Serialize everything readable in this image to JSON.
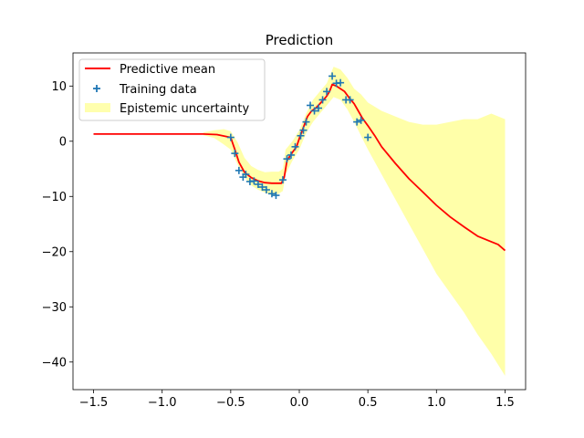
{
  "chart_data": {
    "type": "line",
    "title": "Prediction",
    "xlabel": "",
    "ylabel": "",
    "xlim": [
      -1.65,
      1.65
    ],
    "ylim": [
      -45,
      16
    ],
    "x_ticks": [
      -1.5,
      -1.0,
      -0.5,
      0.0,
      0.5,
      1.0,
      1.5
    ],
    "x_tick_labels": [
      "−1.5",
      "−1.0",
      "−0.5",
      "0.0",
      "0.5",
      "1.0",
      "1.5"
    ],
    "y_ticks": [
      -40,
      -30,
      -20,
      -10,
      0,
      10
    ],
    "y_tick_labels": [
      "−40",
      "−30",
      "−20",
      "−10",
      "0",
      "10"
    ],
    "grid": false,
    "legend_position": "top-left",
    "series": [
      {
        "name": "Predictive mean",
        "kind": "line",
        "color": "#ff0000",
        "x": [
          -1.5,
          -1.2,
          -0.9,
          -0.7,
          -0.6,
          -0.5,
          -0.47,
          -0.44,
          -0.4,
          -0.35,
          -0.3,
          -0.25,
          -0.2,
          -0.15,
          -0.13,
          -0.11,
          -0.09,
          -0.05,
          -0.02,
          0.0,
          0.03,
          0.06,
          0.09,
          0.12,
          0.15,
          0.18,
          0.2,
          0.22,
          0.24,
          0.27,
          0.3,
          0.33,
          0.36,
          0.4,
          0.43,
          0.46,
          0.5,
          0.55,
          0.6,
          0.7,
          0.8,
          0.9,
          1.0,
          1.1,
          1.2,
          1.3,
          1.4,
          1.45,
          1.5
        ],
        "y": [
          1.3,
          1.3,
          1.3,
          1.3,
          1.2,
          0.7,
          -1.5,
          -3.8,
          -5.6,
          -6.6,
          -7.2,
          -7.5,
          -7.6,
          -7.6,
          -7.6,
          -6.5,
          -3.5,
          -2.0,
          -1.0,
          0.5,
          2.5,
          4.5,
          5.5,
          6.0,
          6.8,
          7.6,
          8.2,
          9.0,
          10.3,
          10.0,
          9.5,
          9.0,
          8.0,
          6.8,
          5.5,
          4.2,
          2.8,
          1.0,
          -1.0,
          -4.0,
          -6.8,
          -9.2,
          -11.6,
          -13.7,
          -15.5,
          -17.2,
          -18.2,
          -18.7,
          -19.8
        ]
      },
      {
        "name": "Training data",
        "kind": "scatter",
        "color": "#1f77b4",
        "x": [
          -0.5,
          -0.47,
          -0.44,
          -0.41,
          -0.39,
          -0.36,
          -0.33,
          -0.3,
          -0.27,
          -0.24,
          -0.2,
          -0.17,
          -0.12,
          -0.09,
          -0.06,
          -0.03,
          0.01,
          0.03,
          0.05,
          0.08,
          0.11,
          0.14,
          0.17,
          0.2,
          0.24,
          0.27,
          0.3,
          0.34,
          0.37,
          0.42,
          0.45,
          0.5
        ],
        "y": [
          0.7,
          -2.2,
          -5.3,
          -6.5,
          -6.0,
          -7.3,
          -7.2,
          -7.8,
          -8.3,
          -8.8,
          -9.5,
          -9.8,
          -7.0,
          -3.2,
          -2.5,
          -1.0,
          1.0,
          2.0,
          3.5,
          6.5,
          5.5,
          6.0,
          7.5,
          9.0,
          11.8,
          10.5,
          10.6,
          7.5,
          7.5,
          3.5,
          3.8,
          0.7
        ]
      },
      {
        "name": "Epistemic uncertainty",
        "kind": "band",
        "color": "#ffff9a",
        "x": [
          -0.7,
          -0.62,
          -0.55,
          -0.5,
          -0.45,
          -0.4,
          -0.35,
          -0.3,
          -0.25,
          -0.2,
          -0.15,
          -0.12,
          -0.1,
          -0.05,
          0.0,
          0.05,
          0.1,
          0.15,
          0.2,
          0.25,
          0.3,
          0.35,
          0.4,
          0.45,
          0.5,
          0.6,
          0.7,
          0.8,
          0.9,
          1.0,
          1.1,
          1.2,
          1.3,
          1.4,
          1.5
        ],
        "lower": [
          1.1,
          0.6,
          -0.6,
          -1.5,
          -4.2,
          -6.5,
          -8.0,
          -8.8,
          -9.3,
          -9.8,
          -9.5,
          -9.0,
          -6.0,
          -3.5,
          -1.5,
          1.5,
          3.5,
          5.0,
          6.5,
          8.0,
          7.5,
          5.8,
          3.5,
          1.0,
          -1.5,
          -6.0,
          -10.5,
          -15.0,
          -19.5,
          -24.0,
          -27.5,
          -31.0,
          -35.0,
          -38.5,
          -42.5
        ],
        "upper": [
          1.6,
          2.0,
          2.2,
          1.8,
          -0.2,
          -3.0,
          -4.5,
          -5.2,
          -5.6,
          -5.5,
          -5.5,
          -5.0,
          -1.5,
          0.0,
          2.0,
          5.0,
          7.5,
          9.0,
          10.5,
          13.5,
          13.0,
          11.5,
          9.5,
          8.5,
          7.0,
          5.5,
          4.5,
          3.5,
          3.0,
          3.0,
          3.5,
          4.0,
          4.0,
          5.0,
          4.0
        ]
      }
    ]
  }
}
